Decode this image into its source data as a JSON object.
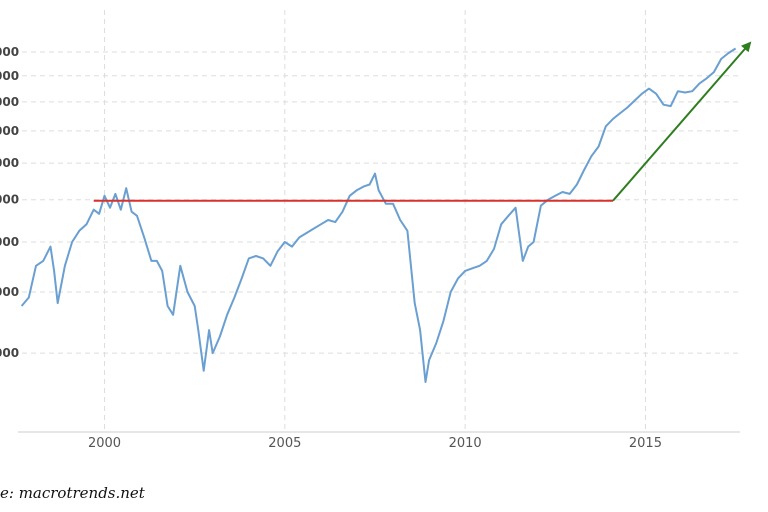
{
  "source_text": "e: macrotrends.net",
  "chart_data": {
    "type": "line",
    "xlabel": "",
    "ylabel": "",
    "xlim": [
      1997.6,
      2017.9
    ],
    "ylim": [
      600,
      2600
    ],
    "scale": "log",
    "x_ticks": [
      2000,
      2005,
      2010,
      2015
    ],
    "x_tick_labels": [
      "2000",
      "2005",
      "2010",
      "2015"
    ],
    "y_gridlines": [
      800,
      1000,
      1200,
      1400,
      1600,
      1800,
      2000,
      2200,
      2400
    ],
    "y_tick_labels": [
      "000",
      "000",
      "000",
      "000",
      "000",
      "000",
      "000",
      "000",
      "000"
    ],
    "grid": true,
    "series": [
      {
        "color": "#6a9fd1",
        "x": [
          1997.7,
          1997.9,
          1998.1,
          1998.3,
          1998.5,
          1998.6,
          1998.7,
          1998.9,
          1999.1,
          1999.3,
          1999.5,
          1999.7,
          1999.85,
          2000.0,
          2000.15,
          2000.3,
          2000.45,
          2000.6,
          2000.75,
          2000.9,
          2001.1,
          2001.3,
          2001.45,
          2001.6,
          2001.75,
          2001.9,
          2002.1,
          2002.3,
          2002.5,
          2002.6,
          2002.75,
          2002.9,
          2003.0,
          2003.2,
          2003.4,
          2003.6,
          2003.8,
          2004.0,
          2004.2,
          2004.4,
          2004.6,
          2004.8,
          2005.0,
          2005.2,
          2005.4,
          2005.6,
          2005.8,
          2006.0,
          2006.2,
          2006.4,
          2006.6,
          2006.8,
          2007.0,
          2007.2,
          2007.35,
          2007.5,
          2007.6,
          2007.8,
          2008.0,
          2008.2,
          2008.4,
          2008.6,
          2008.75,
          2008.9,
          2009.0,
          2009.2,
          2009.4,
          2009.6,
          2009.8,
          2010.0,
          2010.2,
          2010.4,
          2010.6,
          2010.8,
          2011.0,
          2011.2,
          2011.4,
          2011.6,
          2011.75,
          2011.9,
          2012.1,
          2012.3,
          2012.5,
          2012.7,
          2012.9,
          2013.1,
          2013.3,
          2013.5,
          2013.7,
          2013.9,
          2014.1,
          2014.3,
          2014.5,
          2014.7,
          2014.9,
          2015.1,
          2015.3,
          2015.5,
          2015.7,
          2015.9,
          2016.1,
          2016.3,
          2016.5,
          2016.7,
          2016.9,
          2017.1,
          2017.3,
          2017.5
        ],
        "values": [
          950,
          980,
          1100,
          1120,
          1180,
          1080,
          960,
          1100,
          1200,
          1250,
          1280,
          1350,
          1330,
          1420,
          1360,
          1430,
          1350,
          1460,
          1340,
          1320,
          1220,
          1120,
          1120,
          1080,
          950,
          920,
          1100,
          1000,
          950,
          870,
          750,
          870,
          800,
          850,
          920,
          980,
          1050,
          1130,
          1140,
          1130,
          1100,
          1160,
          1200,
          1180,
          1220,
          1240,
          1260,
          1280,
          1300,
          1290,
          1340,
          1420,
          1450,
          1470,
          1480,
          1540,
          1450,
          1380,
          1380,
          1300,
          1250,
          960,
          870,
          720,
          780,
          830,
          900,
          1000,
          1050,
          1080,
          1090,
          1100,
          1120,
          1170,
          1280,
          1320,
          1360,
          1120,
          1180,
          1200,
          1370,
          1400,
          1420,
          1440,
          1430,
          1480,
          1560,
          1640,
          1700,
          1830,
          1880,
          1920,
          1960,
          2010,
          2060,
          2100,
          2060,
          1980,
          1970,
          2080,
          2070,
          2080,
          2140,
          2180,
          2230,
          2340,
          2390,
          2430
        ]
      },
      {
        "color": "#d9312b",
        "x": [
          1999.7,
          2014.1
        ],
        "values": [
          1395,
          1395
        ]
      },
      {
        "color": "#2e7d1f",
        "x": [
          2014.1,
          2017.9
        ],
        "values": [
          1395,
          2480
        ]
      }
    ]
  }
}
